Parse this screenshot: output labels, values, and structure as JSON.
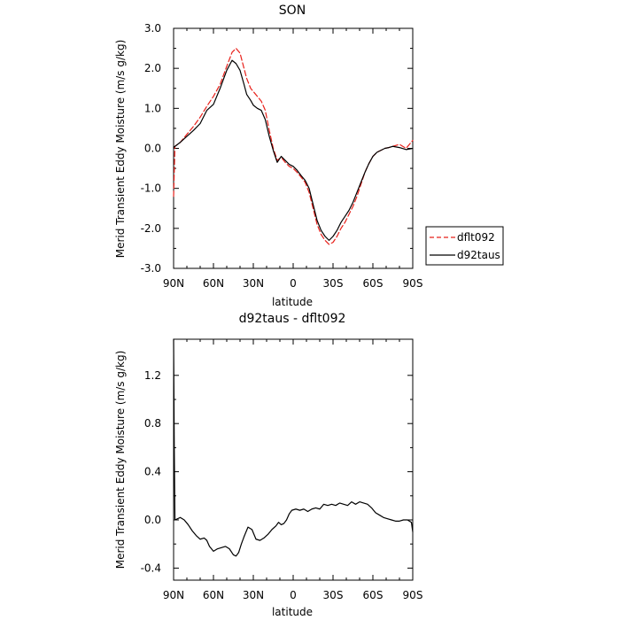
{
  "chart_data": [
    {
      "type": "line",
      "title": "SON",
      "xlabel": "latitude",
      "ylabel": "Merid Transient Eddy Moisture (m/s g/kg)",
      "xlim": [
        90,
        -90
      ],
      "ylim": [
        -3.0,
        3.0
      ],
      "x_ticks": [
        90,
        60,
        30,
        0,
        -30,
        -60,
        -90
      ],
      "x_tick_labels": [
        "90N",
        "60N",
        "30N",
        "0",
        "30S",
        "60S",
        "90S"
      ],
      "y_ticks": [
        -3.0,
        -2.0,
        -1.0,
        0.0,
        1.0,
        2.0,
        3.0
      ],
      "y_tick_labels": [
        "-3.0",
        "-2.0",
        "-1.0",
        "0.0",
        "1.0",
        "2.0",
        "3.0"
      ],
      "legend": "right",
      "series": [
        {
          "name": "dflt092",
          "color": "#e8201a",
          "dash": "dashed",
          "x": [
            90,
            89,
            85,
            80,
            75,
            70,
            65,
            60,
            55,
            50,
            46,
            43,
            40,
            37,
            35,
            32,
            30,
            27,
            24,
            21,
            18,
            15,
            12,
            9,
            6,
            3,
            0,
            -3,
            -6,
            -9,
            -12,
            -15,
            -18,
            -21,
            -24,
            -27,
            -30,
            -33,
            -36,
            -39,
            -42,
            -45,
            -48,
            -51,
            -54,
            -57,
            -60,
            -63,
            -66,
            -69,
            -72,
            -75,
            -80,
            -85,
            -90
          ],
          "y": [
            -1.2,
            0.05,
            0.15,
            0.35,
            0.55,
            0.78,
            1.05,
            1.3,
            1.6,
            2.05,
            2.4,
            2.5,
            2.38,
            2.0,
            1.75,
            1.5,
            1.42,
            1.3,
            1.18,
            0.95,
            0.45,
            0.0,
            -0.3,
            -0.22,
            -0.35,
            -0.45,
            -0.5,
            -0.6,
            -0.72,
            -0.85,
            -1.1,
            -1.5,
            -1.9,
            -2.15,
            -2.3,
            -2.4,
            -2.35,
            -2.2,
            -2.0,
            -1.85,
            -1.65,
            -1.45,
            -1.2,
            -0.9,
            -0.6,
            -0.38,
            -0.2,
            -0.1,
            -0.05,
            0.0,
            0.02,
            0.05,
            0.1,
            0.0,
            0.2
          ]
        },
        {
          "name": "d92taus",
          "color": "#000000",
          "dash": "solid",
          "x": [
            90,
            89,
            85,
            80,
            75,
            70,
            65,
            60,
            55,
            50,
            46,
            43,
            40,
            37,
            35,
            32,
            30,
            27,
            24,
            21,
            18,
            15,
            12,
            9,
            6,
            3,
            0,
            -3,
            -6,
            -9,
            -12,
            -15,
            -18,
            -21,
            -24,
            -27,
            -30,
            -33,
            -36,
            -39,
            -42,
            -45,
            -48,
            -51,
            -54,
            -57,
            -60,
            -63,
            -66,
            -69,
            -72,
            -75,
            -80,
            -85,
            -90
          ],
          "y": [
            0.02,
            0.05,
            0.15,
            0.3,
            0.45,
            0.62,
            0.95,
            1.1,
            1.5,
            1.95,
            2.2,
            2.12,
            1.95,
            1.6,
            1.35,
            1.2,
            1.08,
            1.0,
            0.95,
            0.72,
            0.3,
            -0.05,
            -0.35,
            -0.2,
            -0.3,
            -0.4,
            -0.45,
            -0.55,
            -0.68,
            -0.8,
            -1.0,
            -1.4,
            -1.8,
            -2.05,
            -2.2,
            -2.3,
            -2.2,
            -2.05,
            -1.85,
            -1.7,
            -1.55,
            -1.35,
            -1.1,
            -0.85,
            -0.6,
            -0.38,
            -0.2,
            -0.1,
            -0.05,
            0.0,
            0.02,
            0.05,
            0.02,
            -0.03,
            0.0
          ]
        }
      ]
    },
    {
      "type": "line",
      "title": "d92taus - dflt092",
      "xlabel": "latitude",
      "ylabel": "Merid Transient Eddy Moisture (m/s g/kg)",
      "xlim": [
        90,
        -90
      ],
      "ylim": [
        -0.5,
        1.5
      ],
      "x_ticks": [
        90,
        60,
        30,
        0,
        -30,
        -60,
        -90
      ],
      "x_tick_labels": [
        "90N",
        "60N",
        "30N",
        "0",
        "30S",
        "60S",
        "90S"
      ],
      "y_ticks": [
        -0.4,
        0.0,
        0.4,
        0.8,
        1.2
      ],
      "y_tick_labels": [
        "-0.4",
        "0.0",
        "0.4",
        "0.8",
        "1.2"
      ],
      "series": [
        {
          "color": "#000000",
          "dash": "solid",
          "x": [
            90,
            89.5,
            89,
            87,
            85,
            82,
            79,
            76,
            73,
            70,
            67,
            65,
            63,
            60,
            57,
            54,
            51,
            48,
            45,
            43,
            41,
            39,
            37,
            34,
            31,
            28,
            25,
            22,
            19,
            16,
            13,
            11,
            9,
            7,
            5,
            3,
            1,
            -2,
            -5,
            -8,
            -11,
            -14,
            -17,
            -20,
            -23,
            -26,
            -29,
            -32,
            -35,
            -38,
            -41,
            -44,
            -47,
            -50,
            -53,
            -56,
            -59,
            -62,
            -65,
            -68,
            -71,
            -74,
            -77,
            -80,
            -83,
            -86,
            -89,
            -90
          ],
          "y": [
            1.5,
            0.6,
            0.0,
            0.01,
            0.02,
            0.0,
            -0.04,
            -0.09,
            -0.13,
            -0.16,
            -0.15,
            -0.17,
            -0.22,
            -0.26,
            -0.24,
            -0.23,
            -0.22,
            -0.24,
            -0.29,
            -0.3,
            -0.27,
            -0.2,
            -0.14,
            -0.06,
            -0.08,
            -0.16,
            -0.17,
            -0.15,
            -0.12,
            -0.08,
            -0.05,
            -0.02,
            -0.04,
            -0.03,
            0.0,
            0.05,
            0.08,
            0.09,
            0.08,
            0.09,
            0.07,
            0.09,
            0.1,
            0.09,
            0.13,
            0.12,
            0.13,
            0.12,
            0.14,
            0.13,
            0.12,
            0.15,
            0.13,
            0.15,
            0.14,
            0.13,
            0.1,
            0.06,
            0.04,
            0.02,
            0.01,
            0.0,
            -0.01,
            -0.01,
            0.0,
            0.0,
            -0.02,
            -0.1
          ]
        }
      ]
    }
  ]
}
